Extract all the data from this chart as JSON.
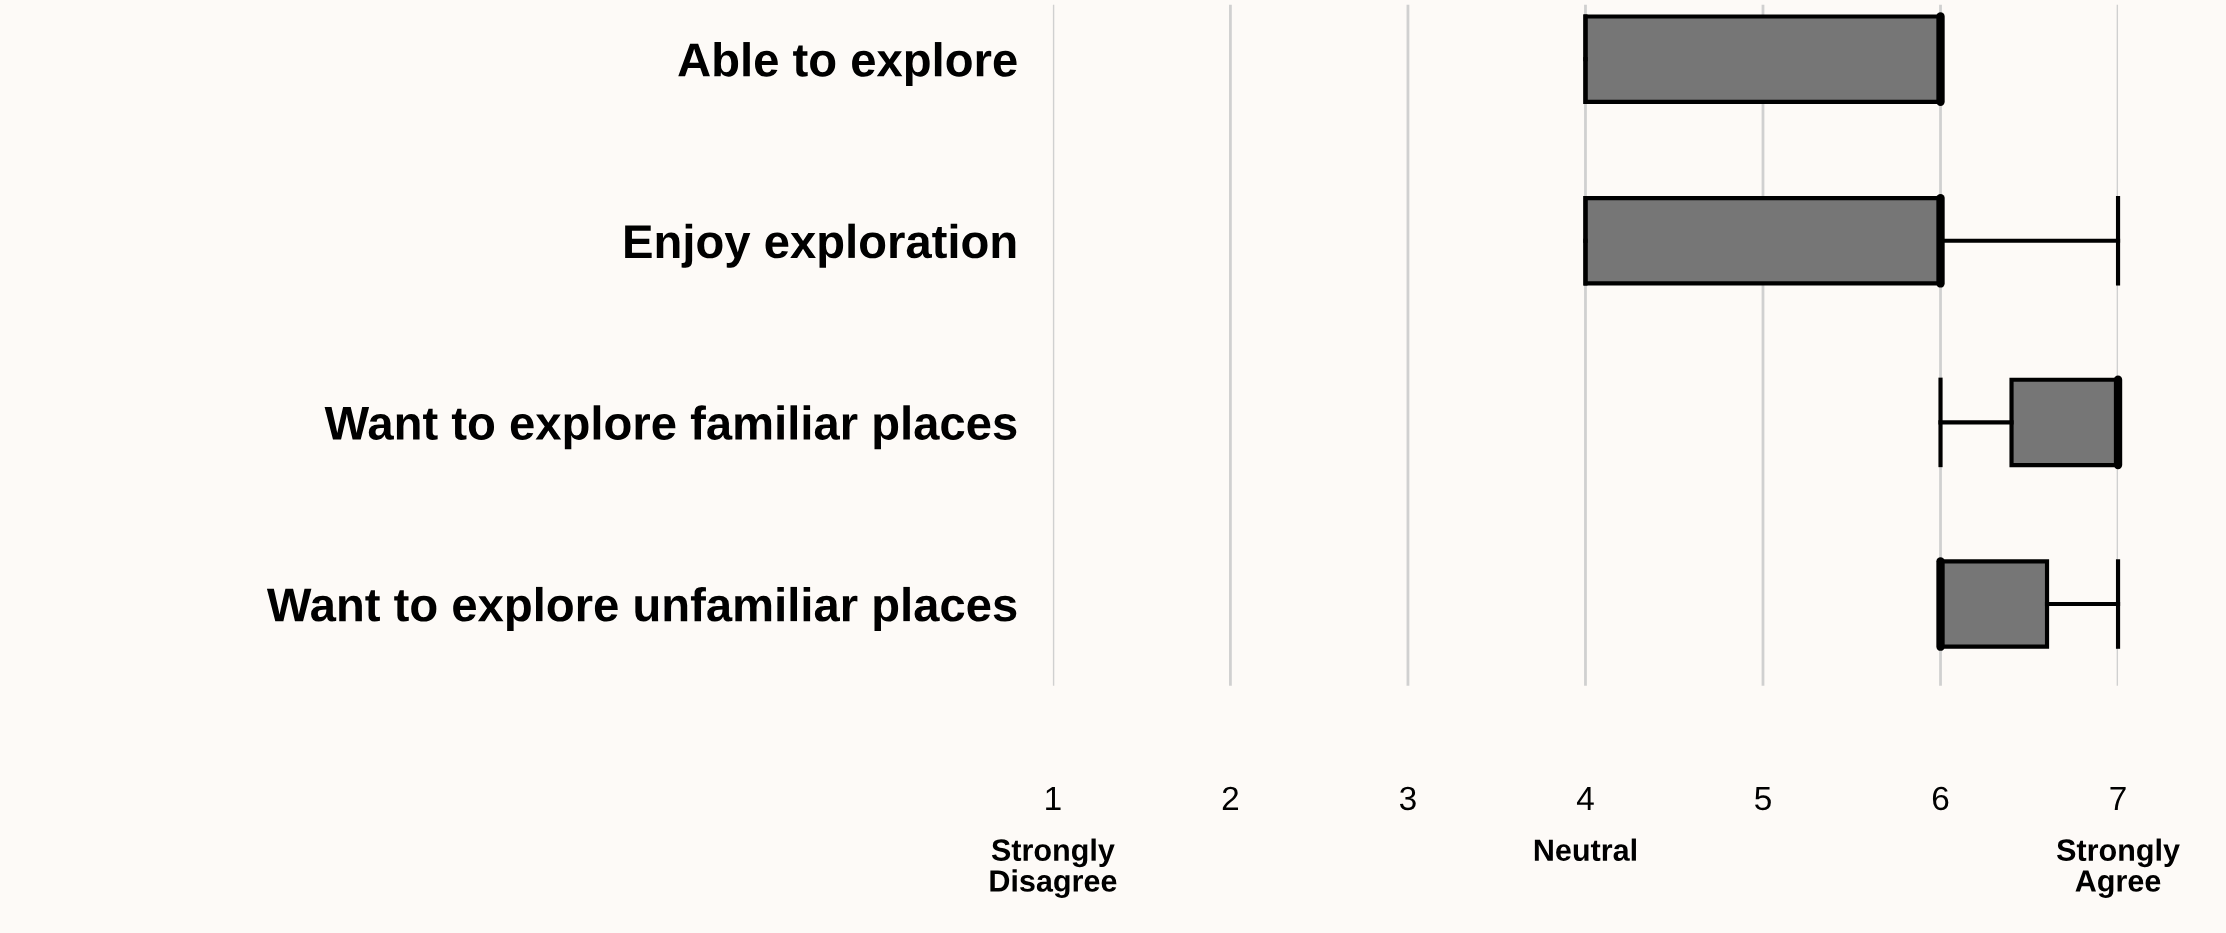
{
  "chart_data": {
    "type": "box",
    "orientation": "horizontal",
    "categories": [
      "Able to explore",
      "Enjoy exploration",
      "Want to explore familiar places",
      "Want to explore unfamiliar places"
    ],
    "boxes": [
      {
        "low": 4,
        "q1": 4,
        "median": 6,
        "q3": 6,
        "high": 6
      },
      {
        "low": 4,
        "q1": 4,
        "median": 6,
        "q3": 6,
        "high": 7
      },
      {
        "low": 6,
        "q1": 6.4,
        "median": 7,
        "q3": 7,
        "high": 7
      },
      {
        "low": 6,
        "q1": 6,
        "median": 6,
        "q3": 6.6,
        "high": 7
      }
    ],
    "color": "#767676",
    "xlim": [
      1,
      7
    ],
    "xticks": [
      1,
      2,
      3,
      4,
      5,
      6,
      7
    ],
    "annotations": [
      "Strongly\nDisagree",
      "Neutral",
      "Strongly\nAgree"
    ],
    "grid": "x",
    "legend": false
  }
}
